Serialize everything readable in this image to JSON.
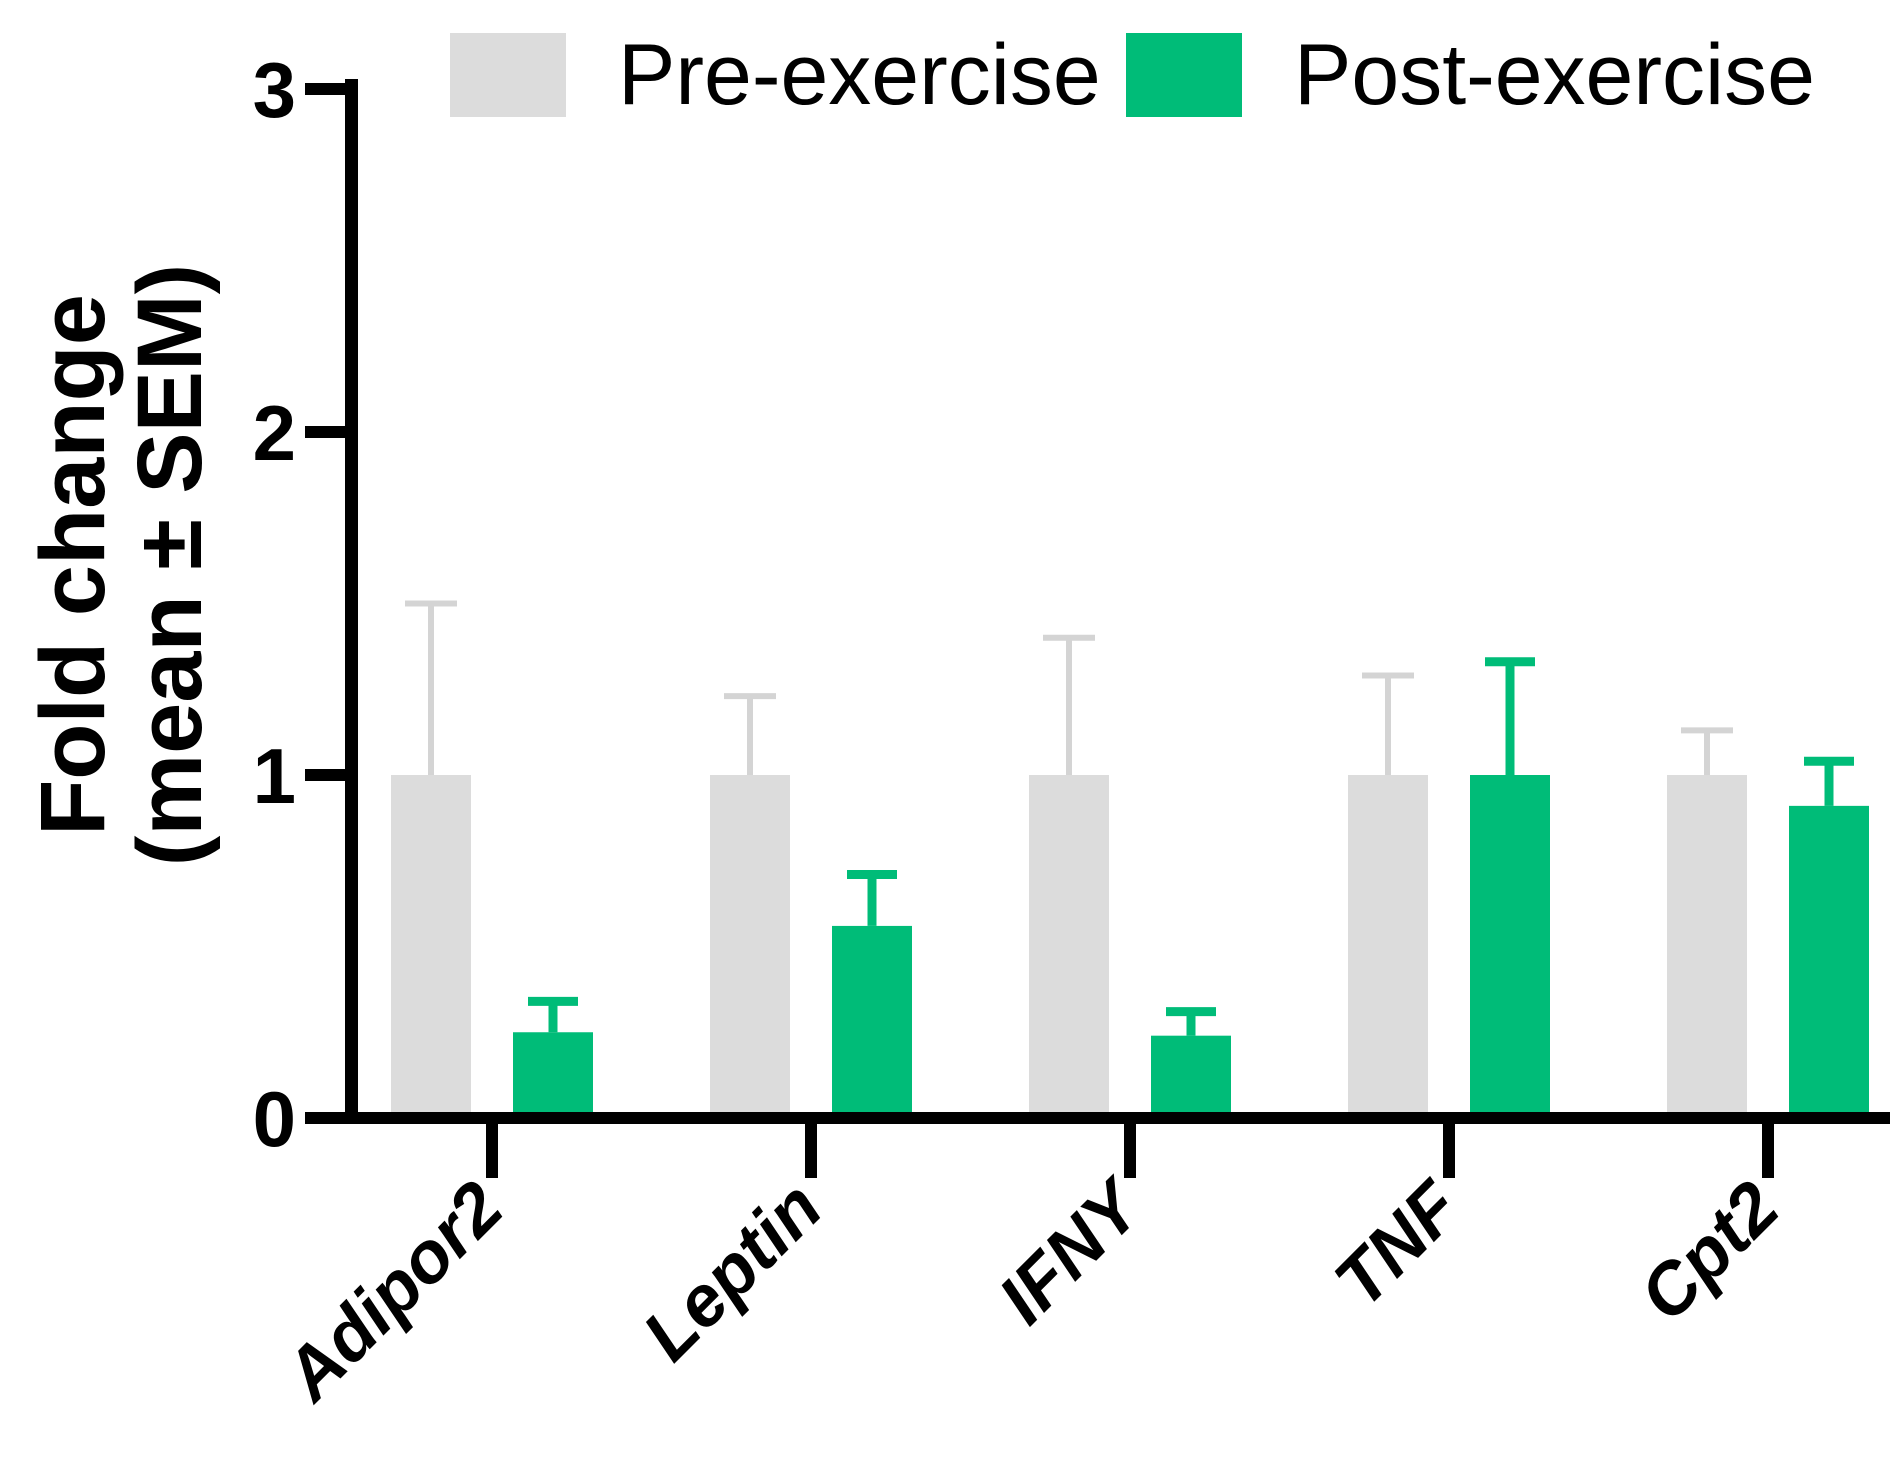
{
  "legend": {
    "items": [
      {
        "label": "Pre-exercise",
        "color": "#DCDCDC"
      },
      {
        "label": "Post-exercise",
        "color": "#00BC78"
      }
    ]
  },
  "y_axis_title": {
    "line1": "Fold change",
    "line2": "(mean ± SEM)"
  },
  "colors": {
    "pre_bar": "#DCDCDC",
    "pre_error": "#D4D4D4",
    "post_bar": "#00BC78",
    "axis": "#000000",
    "background": "#FFFFFF"
  },
  "chart_data": {
    "type": "bar",
    "title": "",
    "categories": [
      "Adipor2",
      "Leptin",
      "IFNY",
      "TNF",
      "Cpt2"
    ],
    "series": [
      {
        "name": "Pre-exercise",
        "color": "#DCDCDC",
        "error_color": "#D4D4D4",
        "values": [
          1.0,
          1.0,
          1.0,
          1.0,
          1.0
        ],
        "sem": [
          0.5,
          0.23,
          0.4,
          0.29,
          0.13
        ]
      },
      {
        "name": "Post-exercise",
        "color": "#00BC78",
        "error_color": "#00BC78",
        "values": [
          0.25,
          0.56,
          0.24,
          1.0,
          0.91
        ],
        "sem": [
          0.09,
          0.15,
          0.07,
          0.33,
          0.13
        ]
      }
    ],
    "xlabel": "",
    "ylabel": "Fold change (mean ± SEM)",
    "ylim": [
      0,
      3
    ],
    "yticks": [
      0,
      1,
      2,
      3
    ],
    "grid": false,
    "error_bars": "upper SEM only",
    "legend_position": "top"
  }
}
